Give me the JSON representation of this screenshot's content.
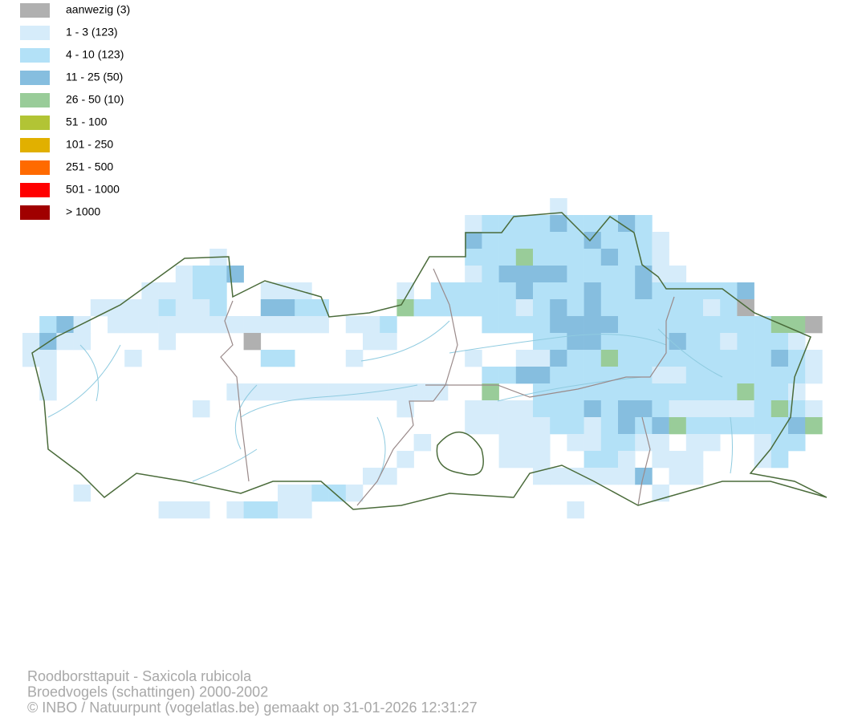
{
  "legend": {
    "items": [
      {
        "label": "aanwezig (3)",
        "color": "#b0b0b0"
      },
      {
        "label": "1 - 3 (123)",
        "color": "#d6ecfa"
      },
      {
        "label": "4 - 10 (123)",
        "color": "#b3e1f7"
      },
      {
        "label": "11 - 25 (50)",
        "color": "#86bedf"
      },
      {
        "label": "26 - 50 (10)",
        "color": "#99cc99"
      },
      {
        "label": "51 - 100",
        "color": "#b2c435"
      },
      {
        "label": "101 - 250",
        "color": "#e1b000"
      },
      {
        "label": "251 - 500",
        "color": "#ff6a00"
      },
      {
        "label": "501 - 1000",
        "color": "#ff0000"
      },
      {
        "label": "> 1000",
        "color": "#a00000"
      }
    ]
  },
  "footer": {
    "lines": [
      "Roodborsttapuit - Saxicola rubicola",
      "Broedvogels (schattingen) 2000-2002",
      "© INBO / Natuurpunt (vogelatlas.be) gemaakt op 31-01-2026 12:31:27"
    ]
  }
}
